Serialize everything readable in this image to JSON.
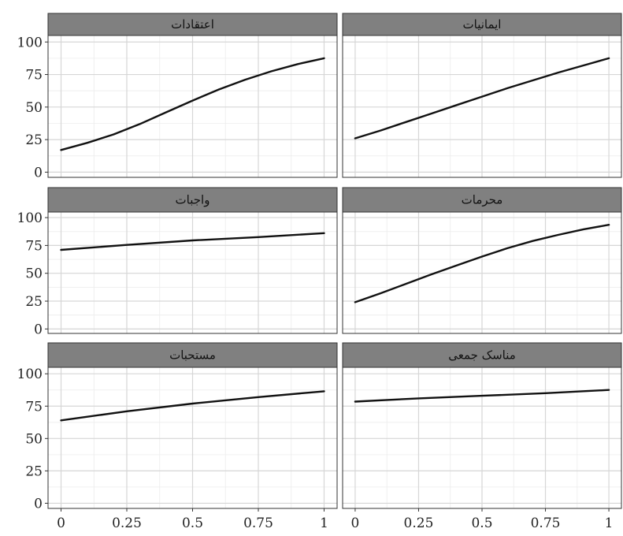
{
  "chart_data": {
    "type": "line",
    "layout": "facet-grid 3 rows x 2 columns",
    "x_ticks": [
      "0",
      "0.25",
      "0.5",
      "0.75",
      "1"
    ],
    "y_ticks": [
      "0",
      "25",
      "50",
      "75",
      "100"
    ],
    "xlim": [
      0,
      1
    ],
    "ylim": [
      -4,
      105
    ],
    "grid": true,
    "panel_background": "#ffffff",
    "strip_color": "#808080",
    "line_color": "#111111",
    "panels": [
      {
        "title": "اعتقادات",
        "x": [
          0,
          0.1,
          0.2,
          0.3,
          0.4,
          0.5,
          0.6,
          0.7,
          0.8,
          0.9,
          1
        ],
        "y": [
          17,
          22.5,
          29,
          37,
          46,
          55,
          63.5,
          71,
          77.5,
          83,
          87.5
        ]
      },
      {
        "title": "ایمانیات",
        "x": [
          0,
          0.1,
          0.2,
          0.3,
          0.4,
          0.5,
          0.6,
          0.7,
          0.8,
          0.9,
          1
        ],
        "y": [
          26,
          32,
          38.5,
          45,
          51.5,
          58,
          64.5,
          70.5,
          76.5,
          82,
          87.5
        ]
      },
      {
        "title": "واجبات",
        "x": [
          0,
          0.25,
          0.5,
          0.75,
          1
        ],
        "y": [
          71,
          75.5,
          79.5,
          82.5,
          86
        ]
      },
      {
        "title": "محرمات",
        "x": [
          0,
          0.1,
          0.2,
          0.3,
          0.4,
          0.5,
          0.6,
          0.7,
          0.8,
          0.9,
          1
        ],
        "y": [
          24,
          32,
          40.5,
          49,
          57,
          65,
          72.5,
          79,
          84.5,
          89.5,
          93.5
        ]
      },
      {
        "title": "مستحبات",
        "x": [
          0,
          0.25,
          0.5,
          0.75,
          1
        ],
        "y": [
          64,
          71,
          77,
          82,
          86.5
        ]
      },
      {
        "title": "مناسک جمعی",
        "x": [
          0,
          0.25,
          0.5,
          0.75,
          1
        ],
        "y": [
          78.5,
          81,
          83,
          85,
          87.5
        ]
      }
    ]
  }
}
